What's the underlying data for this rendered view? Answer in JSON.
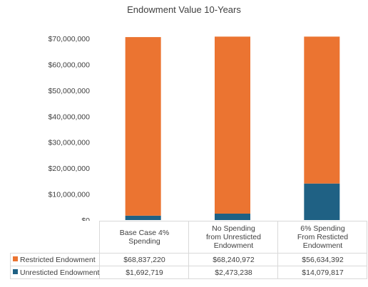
{
  "chart_data": {
    "type": "bar",
    "stacked": true,
    "title": "Endowment Value 10-Years",
    "categories": [
      "Base Case 4% Spending",
      "No Spending from Unresticted Endowment",
      "6% Spending From Resticted Endowment"
    ],
    "category_lines": [
      [
        "Base Case 4%",
        "Spending"
      ],
      [
        "No Spending",
        "from Unresticted",
        "Endowment"
      ],
      [
        "6% Spending",
        "From Resticted",
        "Endowment"
      ]
    ],
    "series": [
      {
        "name": "Unresticted Endowment",
        "color": "#1f6184",
        "values": [
          1692719,
          2473238,
          14079817
        ],
        "labels": [
          "$1,692,719",
          "$2,473,238",
          "$14,079,817"
        ]
      },
      {
        "name": "Restricted Endowment",
        "color": "#eb7431",
        "values": [
          68837220,
          68240972,
          56634392
        ],
        "labels": [
          "$68,837,220",
          "$68,240,972",
          "$56,634,392"
        ]
      }
    ],
    "table_order": [
      1,
      0
    ],
    "ylim": [
      0,
      70000000
    ],
    "yticks": [
      "$0",
      "$10,000,000",
      "$20,000,000",
      "$30,000,000",
      "$40,000,000",
      "$50,000,000",
      "$60,000,000",
      "$70,000,000"
    ],
    "grid": false,
    "legend": "data-table"
  }
}
